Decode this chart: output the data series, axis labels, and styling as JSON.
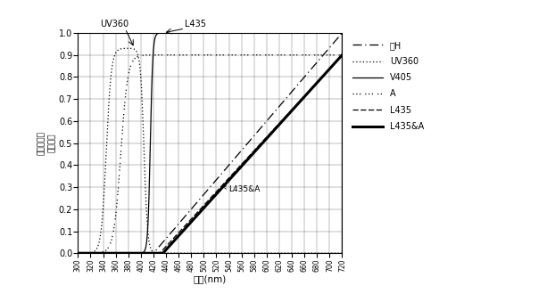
{
  "annotation_uv360": "UV360",
  "annotation_l435": "L435",
  "annotation_l435a": "L435&A",
  "xlabel": "波長(nm)",
  "ylabel_left": "分光透過率\n分光強度",
  "xlim": [
    300,
    720
  ],
  "ylim": [
    0,
    1.0
  ],
  "yticks": [
    0,
    0.1,
    0.2,
    0.3,
    0.4,
    0.5,
    0.6,
    0.7,
    0.8,
    0.9,
    1
  ],
  "xticks": [
    300,
    320,
    340,
    360,
    380,
    400,
    420,
    440,
    460,
    480,
    500,
    520,
    540,
    560,
    580,
    600,
    620,
    640,
    660,
    680,
    700,
    720
  ],
  "legend_labels": [
    "紙H",
    "UV360",
    "V405",
    "A",
    "L435",
    "L435&A"
  ],
  "background_color": "#ffffff"
}
